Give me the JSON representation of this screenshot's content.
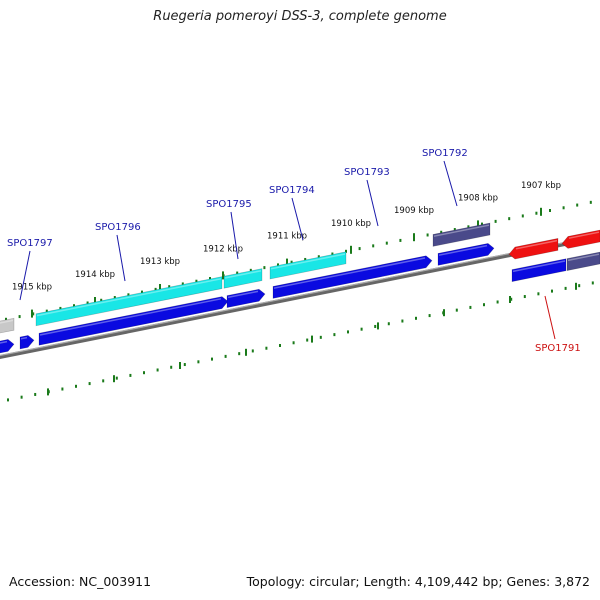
{
  "title": "Ruegeria pomeroyi DSS-3, complete genome",
  "footer": {
    "accession": "Accession: NC_003911",
    "summary": "Topology: circular; Length: 4,109,442 bp; Genes: 3,872"
  },
  "colors": {
    "backbone": "#7a7a7a",
    "ticks": "#1a7a1a",
    "gene_label_blue": "#1a1aaa",
    "gene_label_red": "#cc1111",
    "cds_blue": "#0a0ae0",
    "cds_cyan": "#19e6e6",
    "cds_navy": "#4a4a8a",
    "cds_red": "#ee1111",
    "cds_gray": "#c8c8c8"
  },
  "ticks": [
    {
      "label": "1915 kbp"
    },
    {
      "label": "1914 kbp"
    },
    {
      "label": "1913 kbp"
    },
    {
      "label": "1912 kbp"
    },
    {
      "label": "1911 kbp"
    },
    {
      "label": "1910 kbp"
    },
    {
      "label": "1909 kbp"
    },
    {
      "label": "1908 kbp"
    },
    {
      "label": "1907 kbp"
    }
  ],
  "genes": [
    {
      "label": "SPO1797",
      "color": "blue"
    },
    {
      "label": "SPO1796",
      "color": "blue"
    },
    {
      "label": "SPO1795",
      "color": "blue"
    },
    {
      "label": "SPO1794",
      "color": "blue"
    },
    {
      "label": "SPO1793",
      "color": "blue"
    },
    {
      "label": "SPO1792",
      "color": "blue"
    },
    {
      "label": "SPO1791",
      "color": "red"
    }
  ]
}
